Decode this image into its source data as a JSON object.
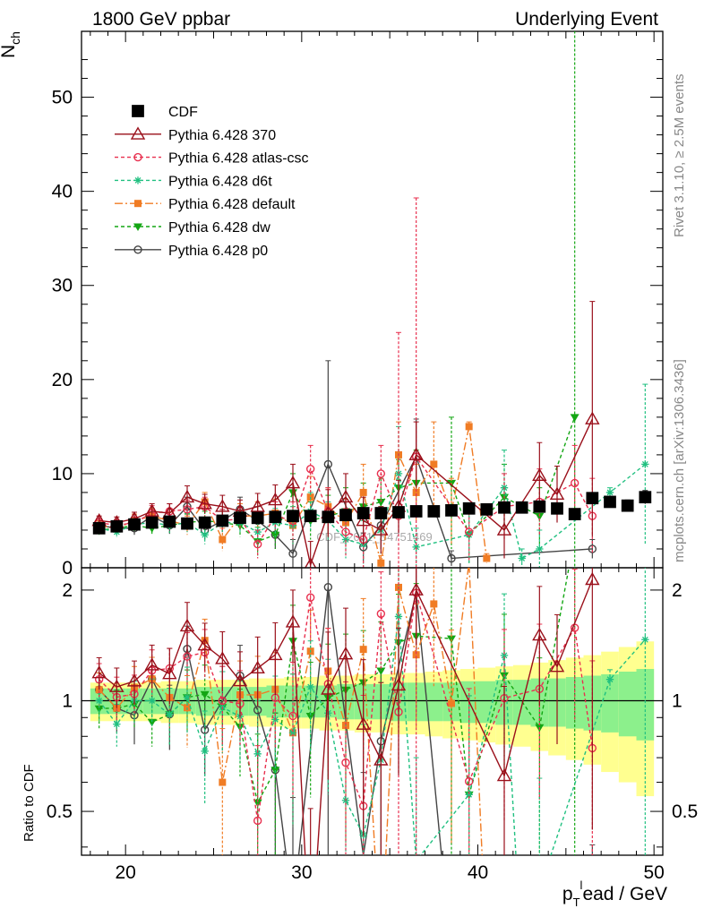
{
  "header": {
    "left": "1800 GeV ppbar",
    "right": "Underlying Event"
  },
  "side_labels": {
    "upper": "Rivet 3.1.10, ≥ 2.5M events",
    "lower": "mcplots.cern.ch [arXiv:1306.3436]"
  },
  "watermark": "CDF_2001_S4751469",
  "colors": {
    "cdf": "#000000",
    "p370": "#9a0f1a",
    "atlas": "#e8304f",
    "d6t": "#20c080",
    "default": "#f07c24",
    "dw": "#13a613",
    "p0": "#444444",
    "band_outer": "#ffff90",
    "band_inner": "#8cf08c"
  },
  "chart_data": [
    {
      "type": "line",
      "panel": "main",
      "ylabel": "N",
      "ylabel_sub": "ch",
      "xlim": [
        17.5,
        50.5
      ],
      "ylim": [
        0,
        57
      ],
      "yticks": [
        0,
        10,
        20,
        30,
        40,
        50
      ],
      "legend_position": "top-left",
      "x": [
        18.5,
        19.5,
        20.5,
        21.5,
        22.5,
        23.5,
        24.5,
        25.5,
        26.5,
        27.5,
        28.5,
        29.5,
        30.5,
        31.5,
        32.5,
        33.5,
        34.5,
        35.5,
        36.5,
        37.5,
        38.5,
        39.5,
        40.5,
        41.5,
        42.5,
        43.5,
        44.5,
        45.5,
        46.5,
        47.5,
        48.5,
        49.5
      ],
      "series": [
        {
          "key": "cdf",
          "name": "CDF",
          "values": [
            4.2,
            4.4,
            4.6,
            4.8,
            4.9,
            4.7,
            4.8,
            5.0,
            5.3,
            5.3,
            5.4,
            5.5,
            5.5,
            5.4,
            5.6,
            5.8,
            5.8,
            5.9,
            6.0,
            6.0,
            6.1,
            6.3,
            6.2,
            6.4,
            6.4,
            6.5,
            6.3,
            5.7,
            7.4,
            7.0,
            6.6,
            7.5
          ],
          "errors": [
            0.2,
            0.2,
            0.2,
            0.2,
            0.2,
            0.2,
            0.2,
            0.2,
            0.3,
            0.3,
            0.3,
            0.3,
            0.3,
            0.3,
            0.3,
            0.3,
            0.3,
            0.3,
            0.3,
            0.3,
            0.3,
            0.4,
            0.4,
            0.4,
            0.4,
            0.4,
            0.4,
            0.5,
            0.5,
            0.5,
            0.6,
            0.7
          ]
        },
        {
          "key": "p370",
          "name": "Pythia 6.428 370",
          "x": [
            18.5,
            19.5,
            20.5,
            21.5,
            22.5,
            23.5,
            24.5,
            25.5,
            26.5,
            27.5,
            28.5,
            29.5,
            30.5,
            31.5,
            32.5,
            33.5,
            34.5,
            35.5,
            36.5,
            41.5,
            43.5,
            44.5,
            46.5
          ],
          "values": [
            5.0,
            4.8,
            5.2,
            6.0,
            5.8,
            7.5,
            6.8,
            6.5,
            6.0,
            6.5,
            7.2,
            9.0,
            0.3,
            5.8,
            7.5,
            5.0,
            4.0,
            6.5,
            12.0,
            4.0,
            9.8,
            7.8,
            15.8
          ],
          "errors": [
            0.5,
            0.6,
            0.7,
            0.8,
            1.0,
            1.2,
            1.0,
            1.2,
            1.2,
            1.4,
            1.6,
            2.0,
            2.5,
            2.5,
            2.5,
            2.5,
            2.5,
            2.8,
            3.5,
            3.0,
            3.5,
            3.0,
            12.5
          ]
        },
        {
          "key": "atlas",
          "name": "Pythia 6.428 atlas-csc",
          "x": [
            18.5,
            19.5,
            20.5,
            21.5,
            22.5,
            23.5,
            24.5,
            25.5,
            26.5,
            27.5,
            28.5,
            29.5,
            30.5,
            31.5,
            32.5,
            33.5,
            34.5,
            35.5,
            36.5,
            39.5,
            41.5,
            43.5,
            45.5,
            46.5
          ],
          "values": [
            4.8,
            4.5,
            4.8,
            5.8,
            6.0,
            6.2,
            6.5,
            5.0,
            5.2,
            2.5,
            5.5,
            5.0,
            10.5,
            6.0,
            3.8,
            3.0,
            10.0,
            5.5,
            11.8,
            3.8,
            6.5,
            7.0,
            9.0,
            5.5
          ],
          "errors": [
            0.5,
            0.6,
            0.6,
            0.8,
            0.8,
            1.0,
            1.0,
            1.2,
            1.2,
            1.5,
            1.5,
            2.0,
            2.5,
            2.5,
            2.5,
            3.0,
            3.0,
            19.5,
            27.5,
            3.0,
            3.5,
            3.5,
            4.0,
            4.0
          ]
        },
        {
          "key": "d6t",
          "name": "Pythia 6.428 d6t",
          "x": [
            18.5,
            19.5,
            20.5,
            21.5,
            22.5,
            23.5,
            24.5,
            25.5,
            26.5,
            27.5,
            28.5,
            29.5,
            30.5,
            31.5,
            32.5,
            33.5,
            34.5,
            35.5,
            36.5,
            39.5,
            41.5,
            42.5,
            43.5,
            47.5,
            49.5
          ],
          "values": [
            4.2,
            3.8,
            4.6,
            4.8,
            4.5,
            4.8,
            3.5,
            4.8,
            4.8,
            3.8,
            4.8,
            4.5,
            6.0,
            5.0,
            3.0,
            2.5,
            4.0,
            10.0,
            2.2,
            3.5,
            8.5,
            1.0,
            2.0,
            8.0,
            11.0
          ],
          "errors": [
            0.5,
            0.5,
            0.6,
            0.7,
            0.8,
            1.0,
            1.0,
            1.2,
            1.2,
            1.5,
            1.5,
            2.0,
            2.0,
            2.0,
            2.0,
            2.5,
            2.5,
            5.0,
            2.0,
            3.0,
            4.0,
            1.0,
            2.0,
            0.5,
            8.5
          ]
        },
        {
          "key": "default",
          "name": "Pythia 6.428 default",
          "x": [
            18.5,
            19.5,
            20.5,
            21.5,
            22.5,
            23.5,
            24.5,
            25.5,
            26.5,
            27.5,
            28.5,
            29.5,
            30.5,
            31.5,
            32.5,
            33.5,
            34.5,
            35.5,
            36.5,
            37.5,
            38.5,
            39.5,
            40.5
          ],
          "values": [
            4.5,
            4.2,
            5.0,
            5.5,
            5.0,
            4.5,
            7.0,
            3.0,
            5.5,
            5.5,
            5.8,
            4.5,
            7.5,
            6.5,
            4.8,
            8.0,
            0.5,
            12.0,
            8.0,
            11.0,
            6.0,
            15.0,
            1.0
          ],
          "errors": [
            0.5,
            0.6,
            0.7,
            0.8,
            0.9,
            1.0,
            1.0,
            1.2,
            1.3,
            1.5,
            1.5,
            2.0,
            2.2,
            2.0,
            2.5,
            3.0,
            0.8,
            3.5,
            3.0,
            4.5,
            3.5,
            0.5,
            0.5
          ]
        },
        {
          "key": "dw",
          "name": "Pythia 6.428 dw",
          "x": [
            18.5,
            19.5,
            20.5,
            21.5,
            22.5,
            23.5,
            24.5,
            25.5,
            26.5,
            27.5,
            28.5,
            29.5,
            30.5,
            31.5,
            32.5,
            33.5,
            34.5,
            35.5,
            36.5,
            38.5,
            39.5,
            41.5,
            43.5,
            45.5
          ],
          "values": [
            4.0,
            4.2,
            4.5,
            4.2,
            4.5,
            4.8,
            5.0,
            4.8,
            4.5,
            2.8,
            3.5,
            8.0,
            5.0,
            5.5,
            6.0,
            6.5,
            7.0,
            8.5,
            9.0,
            9.0,
            3.5,
            7.5,
            5.5,
            16.0
          ],
          "errors": [
            0.5,
            0.5,
            0.6,
            0.6,
            0.8,
            0.9,
            1.0,
            1.2,
            1.2,
            1.5,
            1.5,
            2.0,
            2.0,
            2.2,
            2.5,
            2.5,
            2.5,
            3.0,
            3.5,
            7.0,
            3.0,
            3.5,
            3.0,
            42.0
          ]
        },
        {
          "key": "p0",
          "name": "Pythia 6.428 p0",
          "x": [
            18.5,
            19.5,
            20.5,
            21.5,
            22.5,
            23.5,
            24.5,
            25.5,
            26.5,
            27.5,
            28.5,
            29.5,
            31.5,
            33.5,
            34.5,
            36.5,
            38.5,
            46.5
          ],
          "values": [
            4.5,
            4.2,
            4.2,
            5.5,
            4.5,
            6.5,
            4.0,
            5.0,
            6.2,
            5.0,
            3.5,
            1.5,
            11.0,
            2.2,
            4.5,
            11.8,
            1.0,
            2.0
          ],
          "errors": [
            0.5,
            0.6,
            0.7,
            0.8,
            0.9,
            1.0,
            1.0,
            1.2,
            1.3,
            1.5,
            1.5,
            1.5,
            11.0,
            1.5,
            2.5,
            4.0,
            0.8,
            1.0
          ]
        }
      ]
    },
    {
      "type": "line",
      "panel": "ratio",
      "ylabel": "Ratio to CDF",
      "xlabel": "p",
      "xlabel_sub": "T",
      "xlabel_sup": "l",
      "xlabel_rest": "ead / GeV",
      "xlim": [
        17.5,
        50.5
      ],
      "ylim": [
        0.38,
        2.3
      ],
      "scale": "log",
      "yticks": [
        0.5,
        1,
        2
      ],
      "xticks": [
        20,
        30,
        40,
        50
      ],
      "band_x": [
        18.5,
        19.5,
        20.5,
        21.5,
        22.5,
        23.5,
        24.5,
        25.5,
        26.5,
        27.5,
        28.5,
        29.5,
        30.5,
        31.5,
        32.5,
        33.5,
        34.5,
        35.5,
        36.5,
        37.5,
        38.5,
        39.5,
        40.5,
        41.5,
        42.5,
        43.5,
        44.5,
        45.5,
        46.5,
        47.5,
        48.5,
        49.5
      ],
      "band_inner": [
        0.08,
        0.08,
        0.08,
        0.08,
        0.08,
        0.08,
        0.09,
        0.09,
        0.09,
        0.09,
        0.1,
        0.1,
        0.1,
        0.1,
        0.11,
        0.11,
        0.11,
        0.12,
        0.12,
        0.12,
        0.12,
        0.13,
        0.13,
        0.14,
        0.14,
        0.15,
        0.15,
        0.16,
        0.17,
        0.18,
        0.2,
        0.22
      ],
      "band_outer": [
        0.12,
        0.12,
        0.12,
        0.12,
        0.13,
        0.13,
        0.14,
        0.14,
        0.14,
        0.15,
        0.15,
        0.16,
        0.16,
        0.17,
        0.17,
        0.18,
        0.18,
        0.19,
        0.19,
        0.2,
        0.21,
        0.22,
        0.23,
        0.24,
        0.25,
        0.27,
        0.29,
        0.31,
        0.33,
        0.36,
        0.4,
        0.45
      ]
    }
  ]
}
